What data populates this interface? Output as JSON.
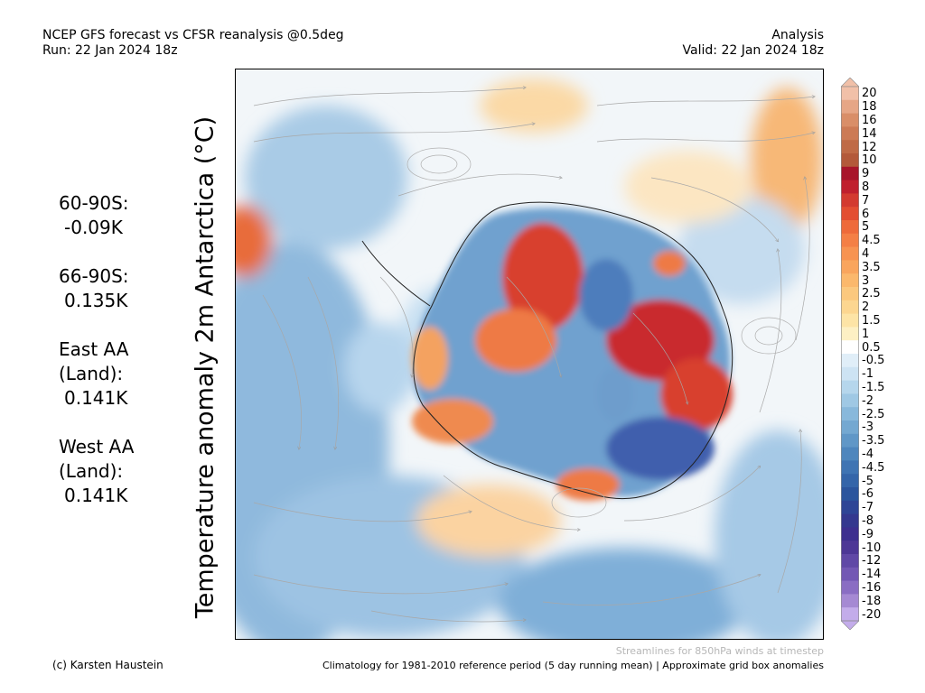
{
  "header": {
    "title_line1": "NCEP GFS forecast vs CFSR reanalysis @0.5deg",
    "title_line2": "Run: 22 Jan 2024 18z",
    "type": "Analysis",
    "valid": "Valid: 22 Jan 2024 18z"
  },
  "y_axis_label": "Temperature anomaly 2m Antarctica (°C)",
  "stats": [
    {
      "label": "60-90S:",
      "value": "-0.09K"
    },
    {
      "label": "66-90S:",
      "value": "0.135K"
    },
    {
      "label": "East AA (Land):",
      "label_lines": [
        "East AA",
        "(Land):"
      ],
      "value": "0.141K"
    },
    {
      "label": "West AA (Land):",
      "label_lines": [
        "West AA",
        "(Land):"
      ],
      "value": "0.141K"
    }
  ],
  "colorbar": {
    "levels": [
      "20",
      "18",
      "16",
      "14",
      "12",
      "10",
      "9",
      "8",
      "7",
      "6",
      "5",
      "4.5",
      "4",
      "3.5",
      "3",
      "2.5",
      "2",
      "1.5",
      "1",
      "0.5",
      "-0.5",
      "-1",
      "-1.5",
      "-2",
      "-2.5",
      "-3",
      "-3.5",
      "-4",
      "-4.5",
      "-5",
      "-6",
      "-7",
      "-8",
      "-9",
      "-10",
      "-12",
      "-14",
      "-16",
      "-18",
      "-20"
    ],
    "colors": [
      "#f1c0a8",
      "#e6a686",
      "#d98e68",
      "#cc7a55",
      "#bf6a46",
      "#b3593a",
      "#a8152b",
      "#c0202e",
      "#d33a30",
      "#e34e32",
      "#ee6a3a",
      "#f47f45",
      "#f79351",
      "#f9a55d",
      "#fbb86c",
      "#fbc87e",
      "#fcd690",
      "#fde4a6",
      "#fdf0c4",
      "#ffffff",
      "#e0eef8",
      "#cde3f3",
      "#b5d6ec",
      "#9fc8e4",
      "#88b8db",
      "#74a8d1",
      "#6097c7",
      "#4e86bd",
      "#3f74b3",
      "#3465a9",
      "#2b559d",
      "#2e4596",
      "#34388f",
      "#3d2f8f",
      "#4d3796",
      "#6048a6",
      "#7358b4",
      "#8a6dc3",
      "#a589d3",
      "#c3acea"
    ],
    "arrow_top_color": "#f1c0a8",
    "arrow_bottom_color": "#c3acea"
  },
  "footer": {
    "credit": "(c) Karsten Haustein",
    "streamline_note": "Streamlines for 850hPa winds at timestep",
    "climatology": "Climatology for 1981-2010 reference period (5 day running mean) | Approximate grid box anomalies"
  }
}
